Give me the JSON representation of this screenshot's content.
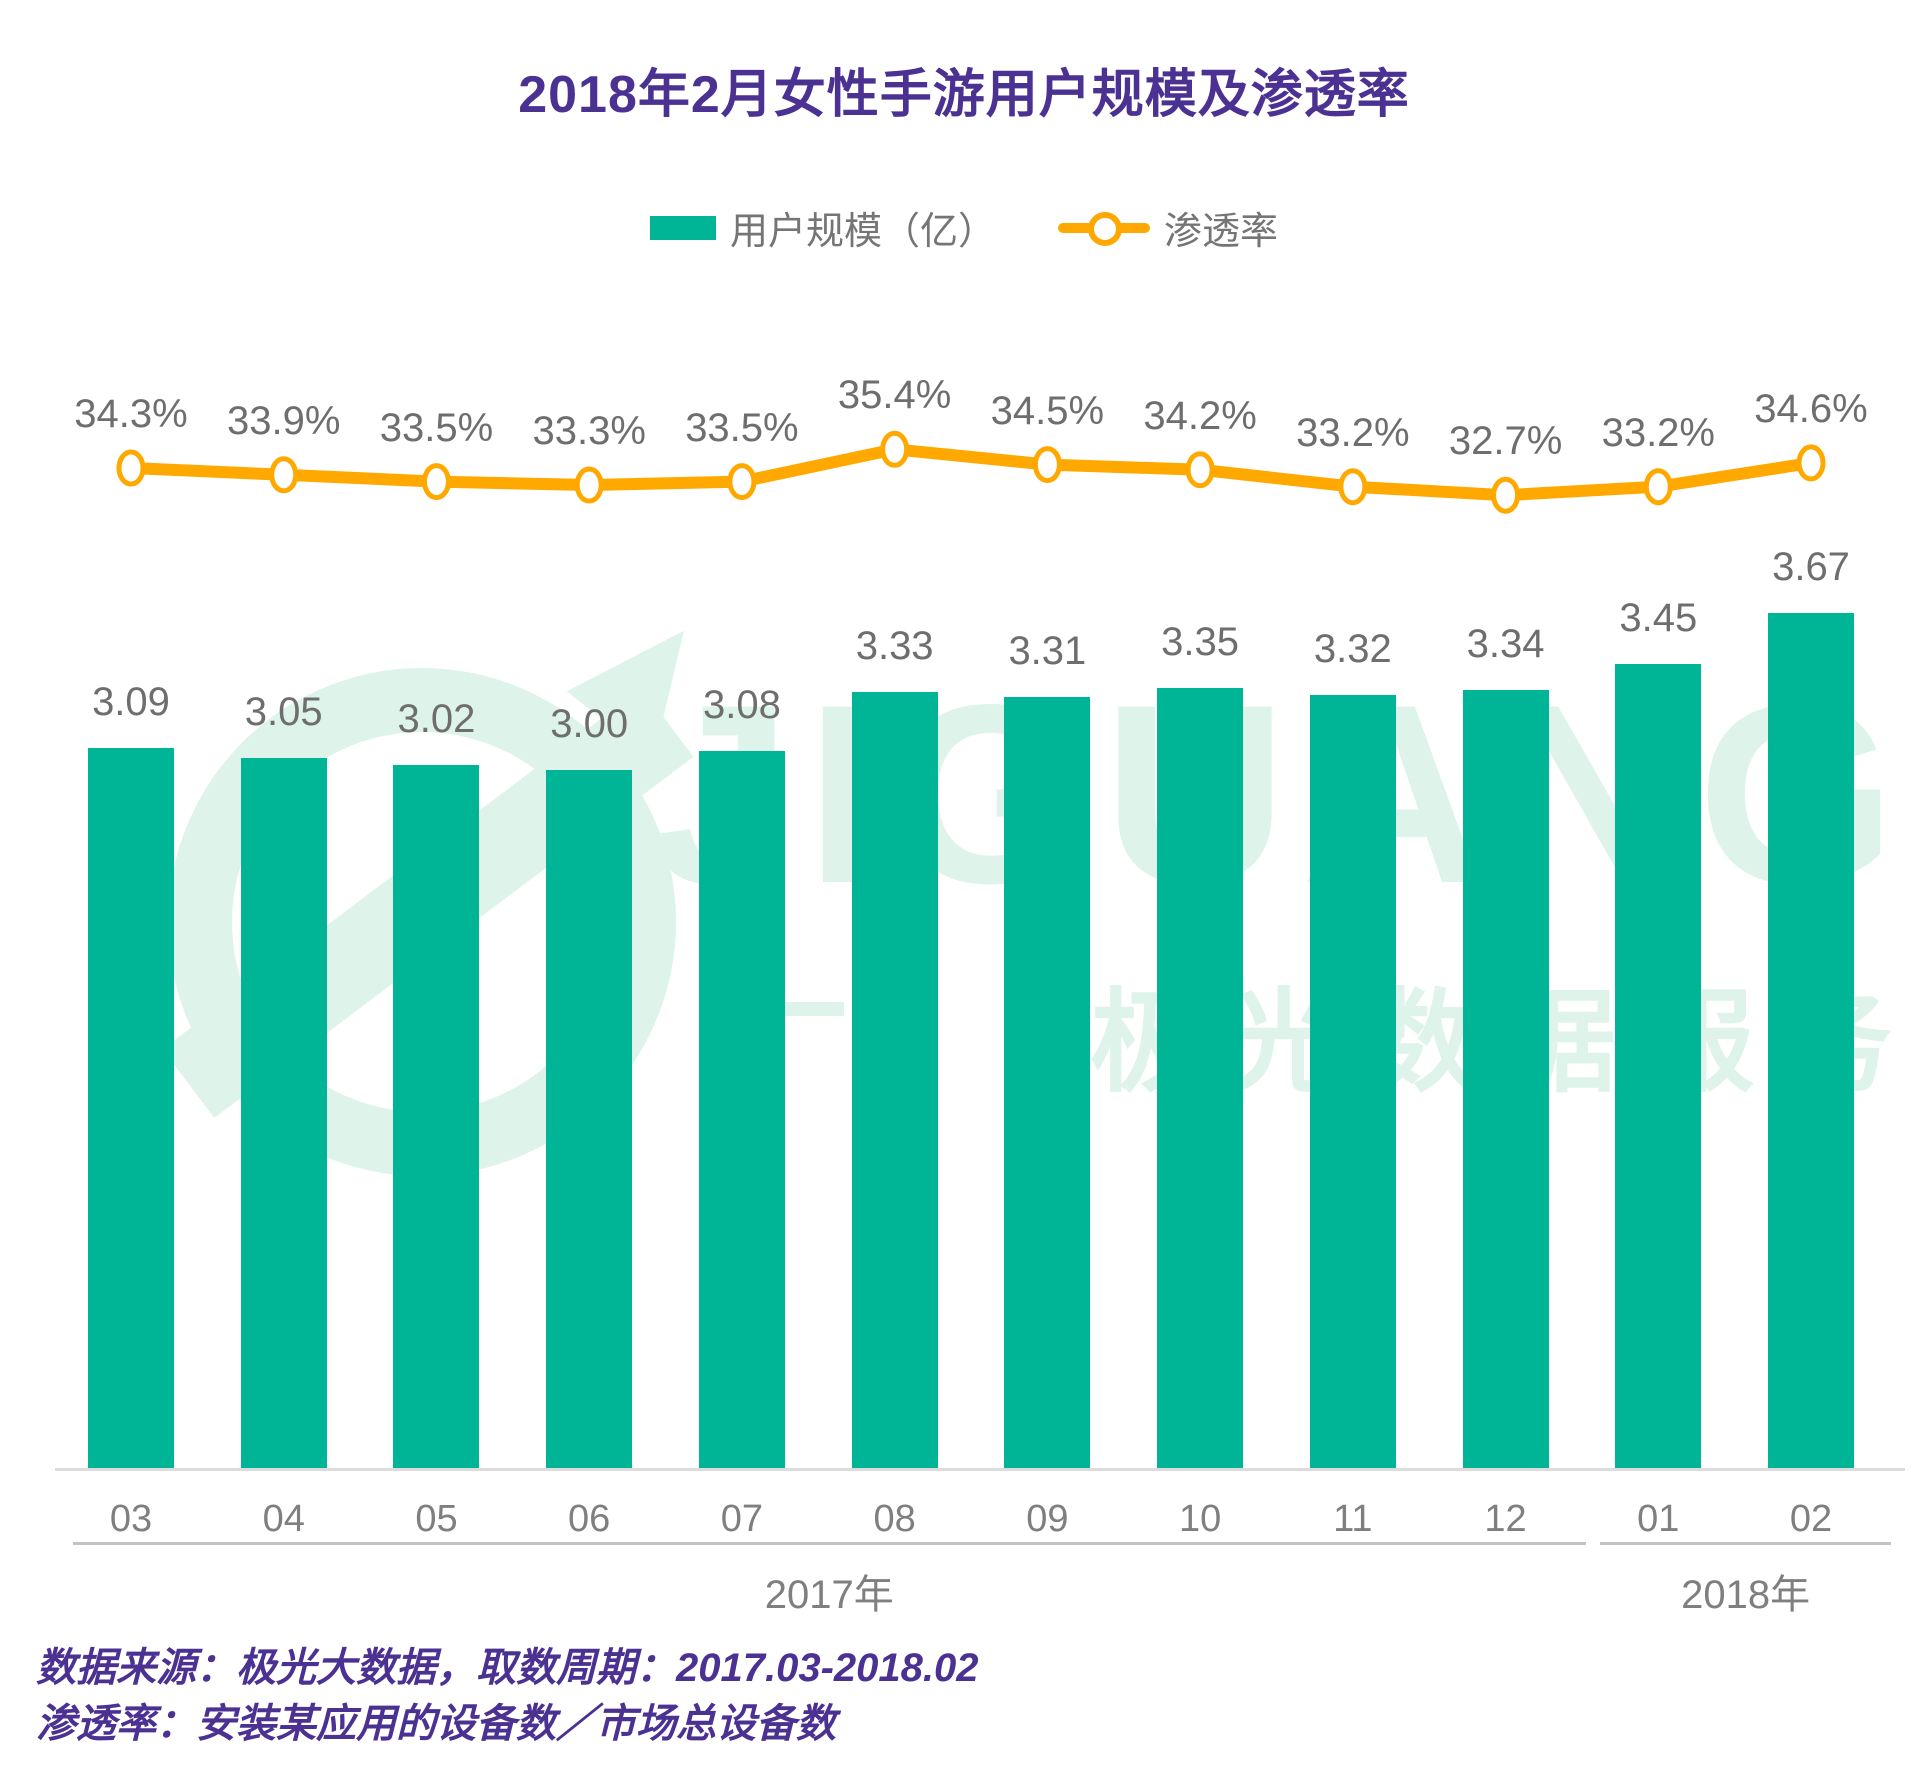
{
  "title": "2018年2月女性手游用户规模及渗透率",
  "legend": {
    "bar_label": "用户规模（亿）",
    "line_label": "渗透率"
  },
  "colors": {
    "bar": "#00B496",
    "line": "#FFA800",
    "title_accent": "#4B3192",
    "value_label_gray": "#6E6E6E",
    "axis_gray": "#DCDCDC",
    "watermark_green": "#DEF3E9"
  },
  "chart_data": {
    "type": "bar",
    "title": "2018年2月女性手游用户规模及渗透率",
    "categories": [
      "03",
      "04",
      "05",
      "06",
      "07",
      "08",
      "09",
      "10",
      "11",
      "12",
      "01",
      "02"
    ],
    "series": [
      {
        "name": "用户规模（亿）",
        "type": "bar",
        "values": [
          3.09,
          3.05,
          3.02,
          3.0,
          3.08,
          3.33,
          3.31,
          3.35,
          3.32,
          3.34,
          3.45,
          3.67
        ],
        "value_format": "0.00"
      },
      {
        "name": "渗透率",
        "type": "line",
        "values": [
          34.3,
          33.9,
          33.5,
          33.3,
          33.5,
          35.4,
          34.5,
          34.2,
          33.2,
          32.7,
          33.2,
          34.6
        ],
        "unit": "%",
        "value_format": "0.0%"
      }
    ],
    "x_groups": [
      {
        "label": "2017年",
        "start": 0,
        "end": 9
      },
      {
        "label": "2018年",
        "start": 10,
        "end": 11
      }
    ],
    "legend_position": "top",
    "grid": false,
    "y_axis_visible": false
  },
  "watermark": {
    "brand": "JIGUANG",
    "dash": "—",
    "text": "极光数据服务"
  },
  "footer": {
    "line1": "数据来源：极光大数据，取数周期：2017.03-2018.02",
    "line2": "渗透率：安装某应用的设备数／市场总设备数"
  }
}
